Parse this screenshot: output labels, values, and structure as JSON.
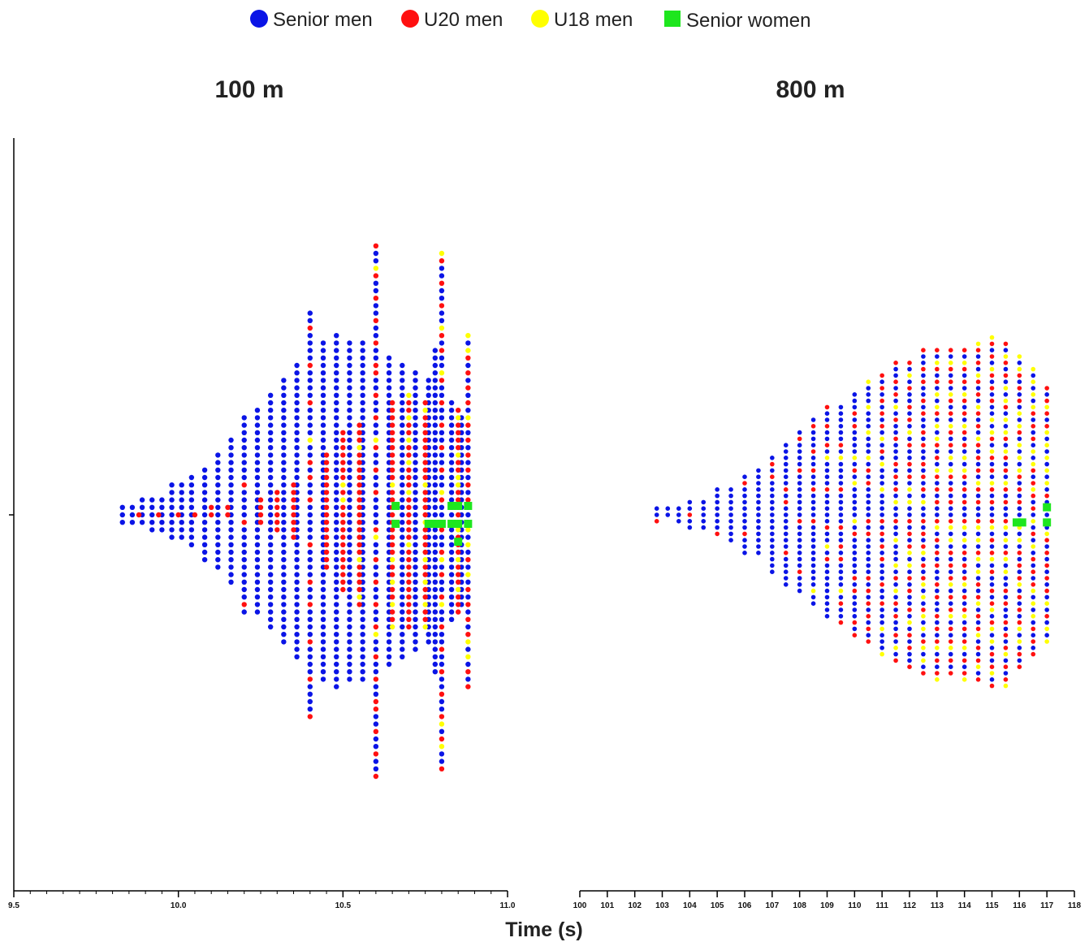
{
  "legend": {
    "items": [
      {
        "label": "Senior men",
        "color": "#0a14e6",
        "shape": "circle"
      },
      {
        "label": "U20 men",
        "color": "#ff1010",
        "shape": "circle"
      },
      {
        "label": "U18 men",
        "color": "#ffff00",
        "shape": "circle"
      },
      {
        "label": "Senior women",
        "color": "#1ee61e",
        "shape": "square"
      }
    ]
  },
  "shared_xlabel": "Time (s)",
  "chart_data": [
    {
      "type": "scatter",
      "subtype": "beeswarm",
      "title": "100 m",
      "xlabel": "Time (s)",
      "xlim": [
        9.5,
        11.0
      ],
      "xticks": [
        "9.5",
        "10.0",
        "10.5",
        "11.0"
      ],
      "x_minor_step": 0.05,
      "bin_width": 0.01,
      "series": [
        {
          "name": "Senior men",
          "color": "#0a14e6",
          "shape": "circle",
          "x": [
            9.83,
            9.86,
            9.89,
            9.92,
            9.95,
            9.98,
            10.01,
            10.04,
            10.08,
            10.12,
            10.16,
            10.2,
            10.24,
            10.28,
            10.32,
            10.36,
            10.4,
            10.44,
            10.48,
            10.52,
            10.56,
            10.6,
            10.64,
            10.68,
            10.72,
            10.76,
            10.78,
            10.8,
            10.83,
            10.86,
            10.88
          ],
          "count": [
            3,
            3,
            4,
            5,
            5,
            8,
            8,
            10,
            13,
            16,
            20,
            24,
            28,
            32,
            36,
            40,
            42,
            46,
            48,
            46,
            46,
            44,
            42,
            40,
            38,
            36,
            44,
            40,
            30,
            26,
            22
          ]
        },
        {
          "name": "U20 men",
          "color": "#ff1010",
          "shape": "circle",
          "x": [
            9.88,
            9.94,
            10.0,
            10.05,
            10.1,
            10.15,
            10.2,
            10.25,
            10.3,
            10.35,
            10.4,
            10.45,
            10.5,
            10.55,
            10.6,
            10.65,
            10.7,
            10.75,
            10.8,
            10.85,
            10.88
          ],
          "count": [
            1,
            1,
            1,
            1,
            2,
            2,
            3,
            4,
            6,
            8,
            12,
            16,
            20,
            22,
            24,
            26,
            26,
            24,
            22,
            20,
            18
          ]
        },
        {
          "name": "U18 men",
          "color": "#ffff00",
          "shape": "circle",
          "x": [
            10.4,
            10.5,
            10.55,
            10.6,
            10.65,
            10.7,
            10.75,
            10.8,
            10.85,
            10.88
          ],
          "count": [
            1,
            2,
            3,
            4,
            5,
            6,
            7,
            8,
            8,
            8
          ]
        },
        {
          "name": "Senior women",
          "color": "#1ee61e",
          "shape": "square",
          "x": [
            10.66,
            10.76,
            10.78,
            10.8,
            10.83,
            10.85,
            10.88
          ],
          "count": [
            2,
            1,
            1,
            1,
            2,
            3,
            2
          ]
        }
      ]
    },
    {
      "type": "scatter",
      "subtype": "beeswarm",
      "title": "800 m",
      "xlabel": "Time (s)",
      "xlim": [
        100,
        118
      ],
      "xticks": [
        "100",
        "101",
        "102",
        "103",
        "104",
        "105",
        "106",
        "107",
        "108",
        "109",
        "110",
        "111",
        "112",
        "113",
        "114",
        "115",
        "116",
        "117",
        "118"
      ],
      "bin_width": 0.16,
      "series": [
        {
          "name": "Senior men",
          "color": "#0a14e6",
          "shape": "circle",
          "x": [
            102.8,
            103.2,
            103.6,
            104.0,
            104.5,
            105.0,
            105.5,
            106.0,
            106.5,
            107.0,
            107.5,
            108.0,
            108.5,
            109.0,
            109.5,
            110.0,
            110.5,
            111.0,
            111.5,
            112.0,
            112.5,
            113.0,
            113.5,
            114.0,
            114.5,
            115.0,
            115.5,
            116.0,
            116.5,
            117.0
          ],
          "count": [
            2,
            2,
            3,
            4,
            5,
            7,
            9,
            11,
            14,
            17,
            20,
            22,
            24,
            26,
            26,
            28,
            28,
            28,
            28,
            26,
            26,
            24,
            22,
            22,
            22,
            24,
            24,
            22,
            20,
            18
          ]
        },
        {
          "name": "U20 men",
          "color": "#ff1010",
          "shape": "circle",
          "x": [
            102.8,
            104.0,
            105.0,
            106.0,
            107.0,
            107.5,
            108.0,
            108.5,
            109.0,
            109.5,
            110.0,
            110.5,
            111.0,
            111.5,
            112.0,
            112.5,
            113.0,
            113.5,
            114.0,
            114.5,
            115.0,
            115.5,
            116.0,
            116.5,
            117.0
          ],
          "count": [
            1,
            1,
            1,
            2,
            2,
            3,
            4,
            5,
            6,
            7,
            8,
            10,
            12,
            14,
            16,
            18,
            20,
            20,
            20,
            20,
            20,
            18,
            16,
            14,
            12
          ]
        },
        {
          "name": "U18 men",
          "color": "#ffff00",
          "shape": "circle",
          "x": [
            108.5,
            109.0,
            109.5,
            110.0,
            110.5,
            111.0,
            111.5,
            112.0,
            112.5,
            113.0,
            113.5,
            114.0,
            114.5,
            115.0,
            115.5,
            116.0,
            116.5,
            117.0
          ],
          "count": [
            1,
            2,
            2,
            3,
            4,
            5,
            6,
            7,
            8,
            9,
            10,
            11,
            12,
            12,
            13,
            12,
            12,
            11
          ]
        },
        {
          "name": "Senior women",
          "color": "#1ee61e",
          "shape": "square",
          "x": [
            115.9,
            116.1,
            117.0
          ],
          "count": [
            1,
            1,
            2
          ]
        }
      ]
    }
  ]
}
